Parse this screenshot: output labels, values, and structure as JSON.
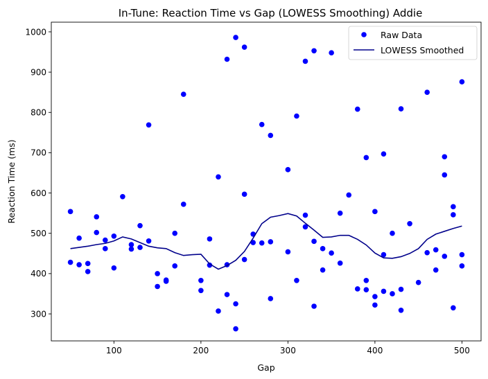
{
  "chart_data": {
    "type": "scatter",
    "title": "In-Tune: Reaction Time vs Gap (LOWESS Smoothing) Addie",
    "xlabel": "Gap",
    "ylabel": "Reaction Time (ms)",
    "xlim": [
      28,
      522
    ],
    "ylim": [
      233,
      1024
    ],
    "xticks": [
      100,
      200,
      300,
      400,
      500
    ],
    "yticks": [
      300,
      400,
      500,
      600,
      700,
      800,
      900,
      1000
    ],
    "grid": false,
    "legend_position": "top-right",
    "point_color": "#0000ff",
    "line_color": "#00008b",
    "series": [
      {
        "name": "Raw Data",
        "kind": "scatter",
        "points": [
          [
            50,
            554
          ],
          [
            50,
            428
          ],
          [
            60,
            488
          ],
          [
            60,
            422
          ],
          [
            70,
            405
          ],
          [
            70,
            425
          ],
          [
            80,
            541
          ],
          [
            80,
            502
          ],
          [
            90,
            462
          ],
          [
            90,
            483
          ],
          [
            100,
            414
          ],
          [
            100,
            493
          ],
          [
            110,
            591
          ],
          [
            120,
            472
          ],
          [
            120,
            461
          ],
          [
            130,
            519
          ],
          [
            130,
            465
          ],
          [
            140,
            769
          ],
          [
            140,
            481
          ],
          [
            150,
            368
          ],
          [
            150,
            400
          ],
          [
            160,
            384
          ],
          [
            160,
            381
          ],
          [
            170,
            500
          ],
          [
            170,
            419
          ],
          [
            180,
            845
          ],
          [
            180,
            572
          ],
          [
            200,
            358
          ],
          [
            200,
            383
          ],
          [
            210,
            486
          ],
          [
            210,
            421
          ],
          [
            220,
            640
          ],
          [
            220,
            307
          ],
          [
            230,
            932
          ],
          [
            230,
            422
          ],
          [
            230,
            348
          ],
          [
            240,
            986
          ],
          [
            240,
            325
          ],
          [
            240,
            263
          ],
          [
            250,
            962
          ],
          [
            250,
            597
          ],
          [
            250,
            435
          ],
          [
            260,
            498
          ],
          [
            260,
            477
          ],
          [
            270,
            770
          ],
          [
            270,
            476
          ],
          [
            280,
            743
          ],
          [
            280,
            479
          ],
          [
            280,
            338
          ],
          [
            300,
            658
          ],
          [
            300,
            454
          ],
          [
            310,
            791
          ],
          [
            310,
            383
          ],
          [
            320,
            927
          ],
          [
            320,
            545
          ],
          [
            320,
            516
          ],
          [
            330,
            953
          ],
          [
            330,
            480
          ],
          [
            330,
            319
          ],
          [
            340,
            462
          ],
          [
            340,
            409
          ],
          [
            350,
            948
          ],
          [
            350,
            451
          ],
          [
            360,
            550
          ],
          [
            360,
            426
          ],
          [
            370,
            595
          ],
          [
            380,
            808
          ],
          [
            380,
            362
          ],
          [
            390,
            688
          ],
          [
            390,
            383
          ],
          [
            390,
            360
          ],
          [
            400,
            554
          ],
          [
            400,
            343
          ],
          [
            400,
            322
          ],
          [
            410,
            697
          ],
          [
            410,
            447
          ],
          [
            410,
            356
          ],
          [
            420,
            500
          ],
          [
            420,
            350
          ],
          [
            430,
            809
          ],
          [
            430,
            361
          ],
          [
            430,
            309
          ],
          [
            440,
            524
          ],
          [
            450,
            378
          ],
          [
            460,
            850
          ],
          [
            460,
            452
          ],
          [
            470,
            459
          ],
          [
            470,
            409
          ],
          [
            480,
            690
          ],
          [
            480,
            645
          ],
          [
            480,
            443
          ],
          [
            490,
            566
          ],
          [
            490,
            546
          ],
          [
            490,
            315
          ],
          [
            500,
            876
          ],
          [
            500,
            447
          ],
          [
            500,
            419
          ]
        ]
      },
      {
        "name": "LOWESS Smoothed",
        "kind": "line",
        "points": [
          [
            50,
            462
          ],
          [
            60,
            465
          ],
          [
            70,
            468
          ],
          [
            80,
            472
          ],
          [
            90,
            475
          ],
          [
            100,
            481
          ],
          [
            110,
            491
          ],
          [
            120,
            486
          ],
          [
            130,
            477
          ],
          [
            140,
            468
          ],
          [
            150,
            464
          ],
          [
            160,
            462
          ],
          [
            170,
            452
          ],
          [
            180,
            445
          ],
          [
            190,
            447
          ],
          [
            200,
            448
          ],
          [
            210,
            424
          ],
          [
            220,
            411
          ],
          [
            230,
            420
          ],
          [
            240,
            433
          ],
          [
            250,
            455
          ],
          [
            260,
            488
          ],
          [
            270,
            524
          ],
          [
            280,
            540
          ],
          [
            290,
            544
          ],
          [
            300,
            549
          ],
          [
            310,
            543
          ],
          [
            320,
            525
          ],
          [
            330,
            508
          ],
          [
            340,
            490
          ],
          [
            350,
            491
          ],
          [
            360,
            495
          ],
          [
            370,
            495
          ],
          [
            380,
            485
          ],
          [
            390,
            471
          ],
          [
            400,
            451
          ],
          [
            410,
            439
          ],
          [
            420,
            438
          ],
          [
            430,
            442
          ],
          [
            440,
            450
          ],
          [
            450,
            462
          ],
          [
            460,
            485
          ],
          [
            470,
            498
          ],
          [
            480,
            505
          ],
          [
            490,
            512
          ],
          [
            500,
            518
          ]
        ]
      }
    ]
  }
}
